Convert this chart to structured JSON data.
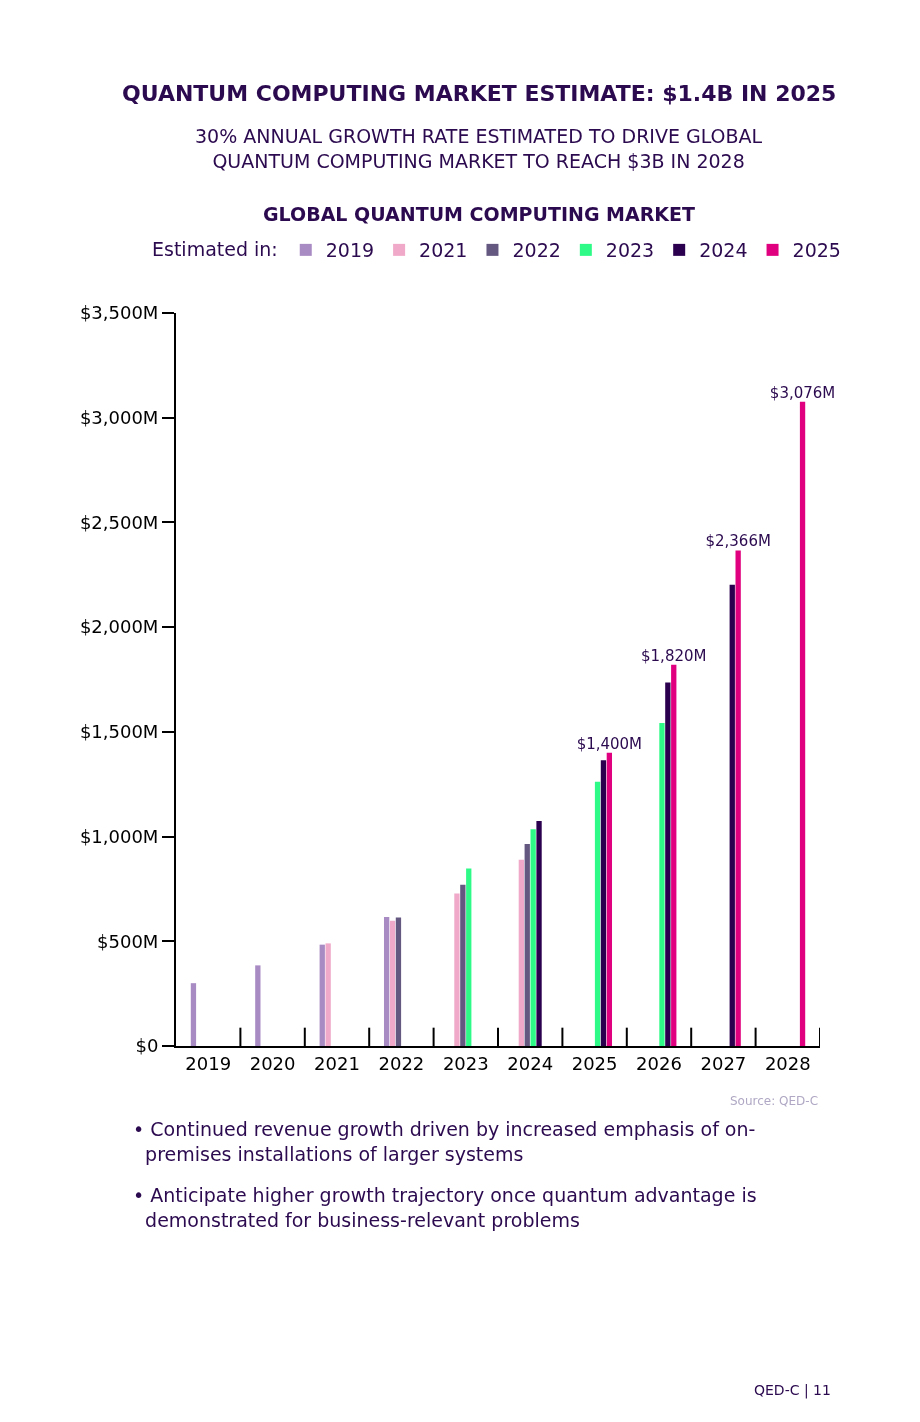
{
  "chart_data": {
    "type": "bar",
    "title": "QUANTUM COMPUTING MARKET ESTIMATE: $1.4B IN 2025",
    "subtitle": "30% ANNUAL GROWTH RATE ESTIMATED TO DRIVE GLOBAL\nQUANTUM COMPUTING MARKET TO REACH $3B IN 2028",
    "legend_title": "Estimated in:",
    "categories": [
      "2019",
      "2020",
      "2021",
      "2022",
      "2023",
      "2024",
      "2025",
      "2026",
      "2027",
      "2028"
    ],
    "series": [
      {
        "name": "2019",
        "color": "#a98bc4",
        "values": [
          300,
          385,
          484,
          616,
          null,
          null,
          null,
          null,
          null,
          null
        ]
      },
      {
        "name": "2021",
        "color": "#f0a9c8",
        "values": [
          null,
          null,
          490,
          598,
          728,
          889,
          null,
          null,
          null,
          null
        ]
      },
      {
        "name": "2022",
        "color": "#645880",
        "values": [
          null,
          null,
          null,
          614,
          770,
          965,
          null,
          null,
          null,
          null
        ]
      },
      {
        "name": "2023",
        "color": "#2efb87",
        "values": [
          null,
          null,
          null,
          null,
          847,
          1035,
          1262,
          1542,
          null,
          null
        ]
      },
      {
        "name": "2024",
        "color": "#2b004f",
        "values": [
          null,
          null,
          null,
          null,
          null,
          1074,
          1365,
          1736,
          2203,
          null
        ]
      },
      {
        "name": "2025",
        "color": "#e0007f",
        "values": [
          null,
          null,
          null,
          null,
          null,
          null,
          1400,
          1820,
          2366,
          3076
        ],
        "value_labels": [
          null,
          null,
          null,
          null,
          null,
          null,
          "$1,400M",
          "$1,820M",
          "$2,366M",
          "$3,076M"
        ]
      }
    ],
    "ylim": [
      0,
      3500
    ],
    "yticks": [
      {
        "value": 0,
        "label": "$0"
      },
      {
        "value": 500,
        "label": "$500M"
      },
      {
        "value": 1000,
        "label": "$1,000M"
      },
      {
        "value": 1500,
        "label": "$1,500M"
      },
      {
        "value": 2000,
        "label": "$2,000M"
      },
      {
        "value": 2500,
        "label": "$2,500M"
      },
      {
        "value": 3000,
        "label": "$3,000M"
      },
      {
        "value": 3500,
        "label": "$3,500M"
      }
    ],
    "legend": "top",
    "annotations": [
      "GLOBAL QUANTUM COMPUTING MARKET",
      "Source: QED-C",
      "• Continued revenue growth driven by increased emphasis of on-\n  premises installations of larger systems",
      "• Anticipate higher growth trajectory once quantum advantage is\n  demonstrated for business-relevant problems",
      "QED-C | 11"
    ]
  }
}
